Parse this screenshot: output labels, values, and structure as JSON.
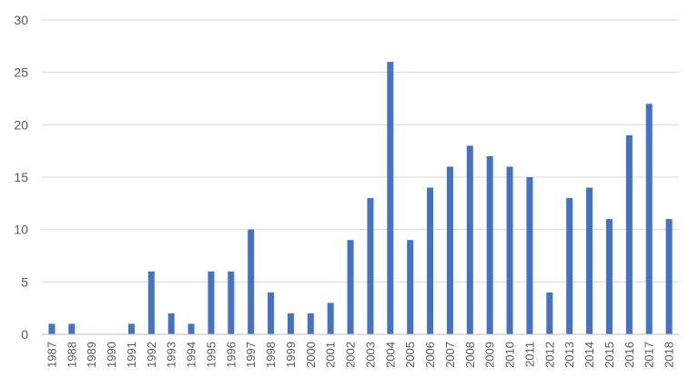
{
  "chart_data": {
    "type": "bar",
    "categories": [
      "1987",
      "1988",
      "1989",
      "1990",
      "1991",
      "1992",
      "1993",
      "1994",
      "1995",
      "1996",
      "1997",
      "1998",
      "1999",
      "2000",
      "2001",
      "2002",
      "2003",
      "2004",
      "2005",
      "2006",
      "2007",
      "2008",
      "2009",
      "2010",
      "2011",
      "2012",
      "2013",
      "2014",
      "2015",
      "2016",
      "2017",
      "2018"
    ],
    "values": [
      1,
      1,
      0,
      0,
      1,
      6,
      2,
      1,
      6,
      6,
      10,
      4,
      2,
      2,
      3,
      9,
      13,
      26,
      9,
      14,
      16,
      18,
      17,
      16,
      15,
      4,
      13,
      14,
      11,
      19,
      22,
      11
    ],
    "ylim": [
      0,
      30
    ],
    "yticks": [
      "0",
      "5",
      "10",
      "15",
      "20",
      "25",
      "30"
    ],
    "grid": true,
    "legend": "none",
    "bar_color": "#4472c4"
  }
}
